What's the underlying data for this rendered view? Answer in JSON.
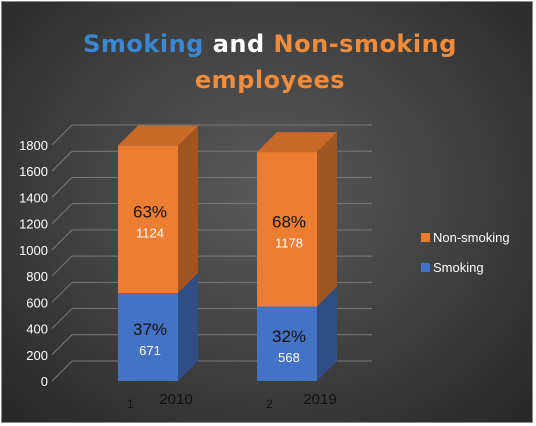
{
  "title": {
    "part1": "Smoking",
    "part2": "and",
    "part3": "Non-smoking",
    "part4": "employees"
  },
  "colors": {
    "smoking": "#4472c4",
    "non_smoking": "#ed7d31",
    "title_smoking": "#3a87d4",
    "title_non_smoking": "#f28c3a"
  },
  "chart_data": {
    "type": "bar",
    "stacked": true,
    "three_d": true,
    "categories": [
      "2010",
      "2019"
    ],
    "category_index": [
      "1",
      "2"
    ],
    "yticks": [
      "0",
      "200",
      "400",
      "600",
      "800",
      "1000",
      "1200",
      "1400",
      "1600",
      "1800"
    ],
    "ylim": [
      0,
      1800
    ],
    "grid": true,
    "legend_position": "right",
    "series": [
      {
        "name": "Smoking",
        "values": [
          671,
          568
        ],
        "percent_labels": [
          "37%",
          "32%"
        ],
        "value_labels": [
          "671",
          "568"
        ]
      },
      {
        "name": "Non-smoking",
        "values": [
          1124,
          1178
        ],
        "percent_labels": [
          "63%",
          "68%"
        ],
        "value_labels": [
          "1124",
          "1178"
        ]
      }
    ]
  }
}
